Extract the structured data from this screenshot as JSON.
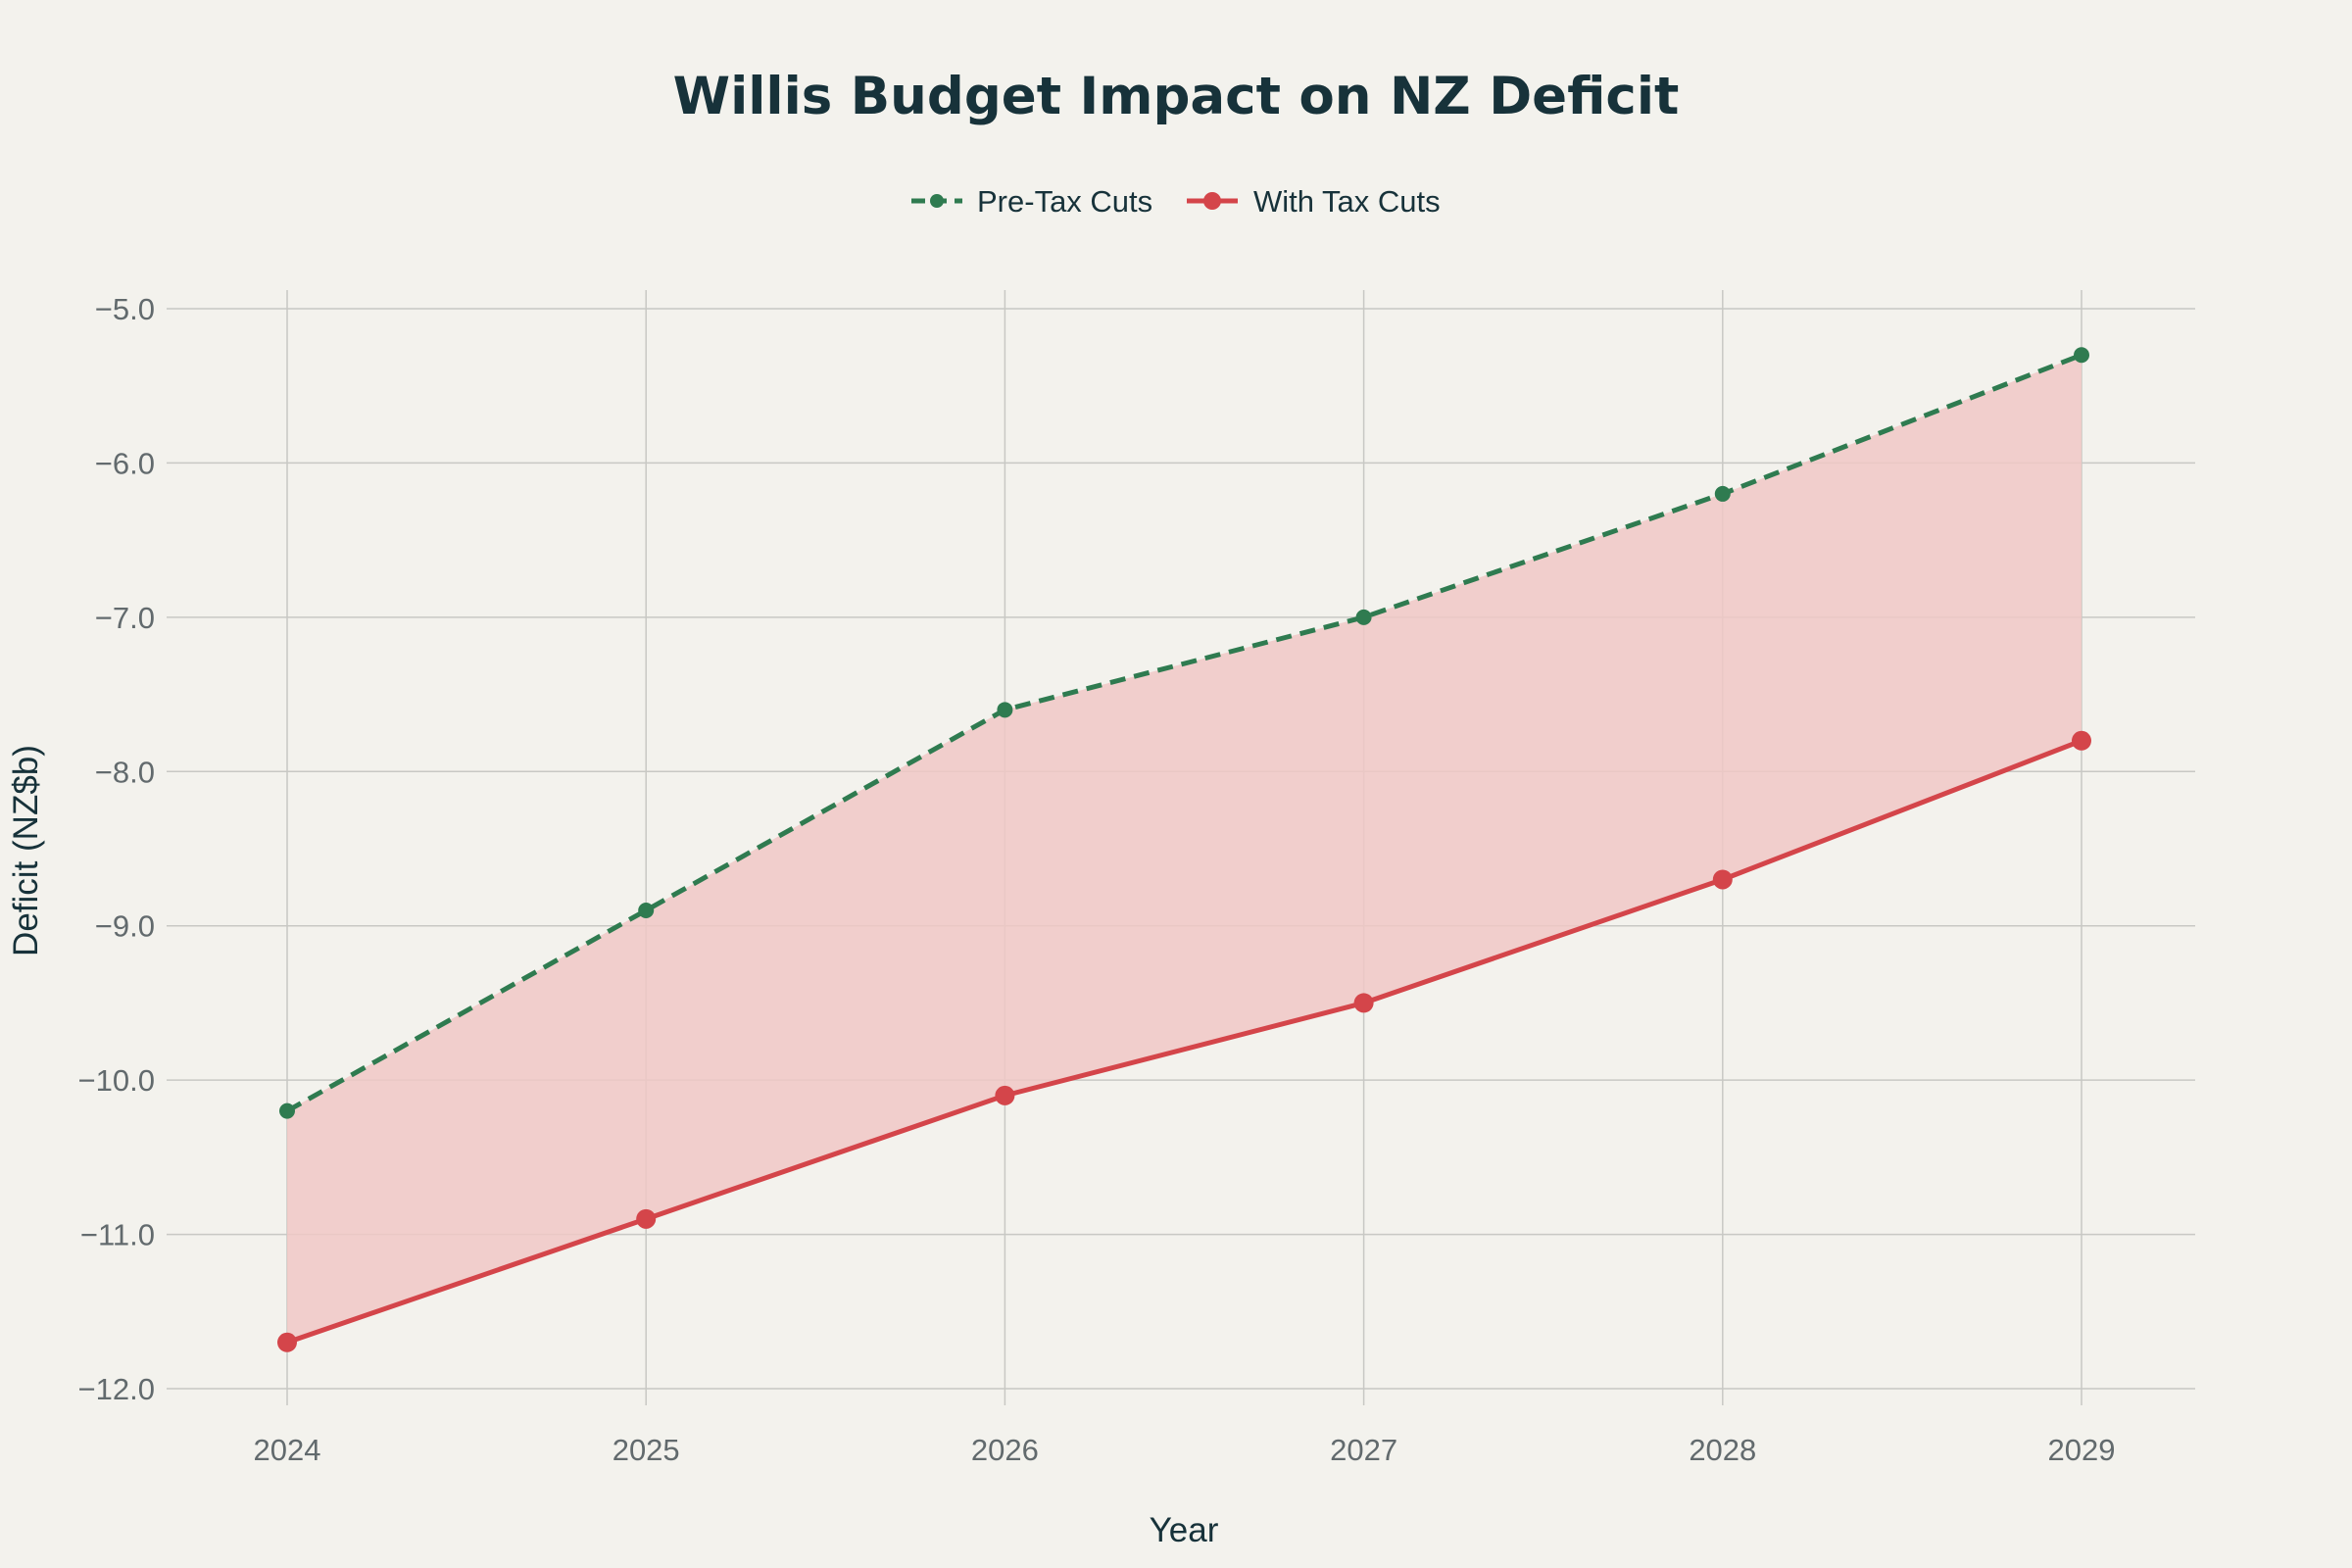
{
  "chart_data": {
    "type": "line",
    "title": "Willis Budget Impact on NZ Deficit",
    "xlabel": "Year",
    "ylabel": "Deficit (NZ$b)",
    "x": [
      "2024",
      "2025",
      "2026",
      "2027",
      "2028",
      "2029"
    ],
    "ylim": [
      -12.0,
      -5.0
    ],
    "yticks": [
      "−5.0",
      "−6.0",
      "−7.0",
      "−8.0",
      "−9.0",
      "−10.0",
      "−11.0",
      "−12.0"
    ],
    "ytick_values": [
      -5,
      -6,
      -7,
      -8,
      -9,
      -10,
      -11,
      -12
    ],
    "grid": true,
    "legend_position": "top-center",
    "fill_between": true,
    "series": [
      {
        "name": "Pre-Tax Cuts",
        "values": [
          -10.2,
          -8.9,
          -7.6,
          -7.0,
          -6.2,
          -5.3
        ],
        "color": "#2f7b50",
        "style": "dashed"
      },
      {
        "name": "With Tax Cuts",
        "values": [
          -11.7,
          -10.9,
          -10.1,
          -9.5,
          -8.7,
          -7.8
        ],
        "color": "#d4454a",
        "style": "solid"
      }
    ],
    "fill_color": "#f0c8c6"
  }
}
